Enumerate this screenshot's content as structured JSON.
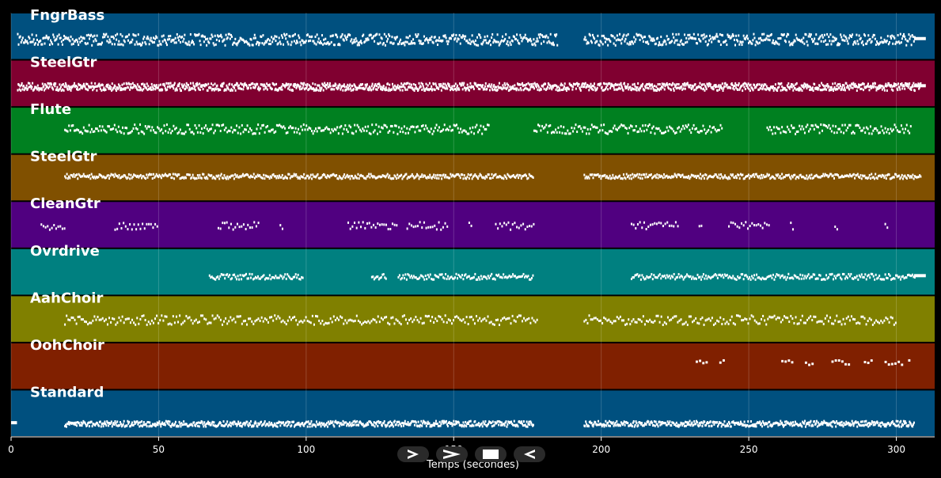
{
  "chart_data": {
    "type": "piano-roll",
    "xlabel": "Temps (secondes)",
    "xlim": [
      0,
      313
    ],
    "xticks": [
      0,
      50,
      100,
      150,
      200,
      250,
      300
    ],
    "grid": true,
    "tracks": [
      {
        "name": "FngrBass",
        "color": "#00507f",
        "density": 3.5,
        "row": 0.55,
        "spread": 0.12,
        "segments": [
          [
            2,
            185
          ],
          [
            194,
            306
          ]
        ],
        "tail": [
          306,
          310
        ]
      },
      {
        "name": "SteelGtr",
        "color": "#800030",
        "density": 5,
        "row": 0.55,
        "spread": 0.08,
        "segments": [
          [
            2,
            308
          ]
        ],
        "tail": [
          306,
          310
        ]
      },
      {
        "name": "Flute",
        "color": "#008020",
        "density": 2.2,
        "row": 0.45,
        "spread": 0.1,
        "segments": [
          [
            18,
            162
          ],
          [
            177,
            241
          ],
          [
            256,
            305
          ]
        ]
      },
      {
        "name": "SteelGtr",
        "color": "#805000",
        "density": 3,
        "row": 0.45,
        "spread": 0.05,
        "segments": [
          [
            18,
            177
          ],
          [
            194,
            308
          ]
        ]
      },
      {
        "name": "CleanGtr",
        "color": "#500080",
        "density": 1.4,
        "row": 0.5,
        "spread": 0.08,
        "segments": [
          [
            10,
            18
          ],
          [
            35,
            50
          ],
          [
            70,
            84
          ],
          [
            91,
            92
          ],
          [
            114,
            131
          ],
          [
            134,
            148
          ],
          [
            155,
            156
          ],
          [
            164,
            177
          ],
          [
            210,
            226
          ],
          [
            233,
            234
          ],
          [
            243,
            257
          ],
          [
            264,
            265
          ],
          [
            279,
            280
          ],
          [
            296,
            297
          ]
        ]
      },
      {
        "name": "Ovrdrive",
        "color": "#008080",
        "density": 2.5,
        "row": 0.58,
        "spread": 0.06,
        "segments": [
          [
            67,
            99
          ],
          [
            122,
            127
          ],
          [
            131,
            177
          ],
          [
            210,
            306
          ]
        ],
        "tail": [
          306,
          310
        ]
      },
      {
        "name": "AahChoir",
        "color": "#808000",
        "density": 1.8,
        "row": 0.5,
        "spread": 0.1,
        "segments": [
          [
            18,
            178
          ],
          [
            194,
            300
          ]
        ]
      },
      {
        "name": "OohChoir",
        "color": "#802000",
        "density": 0.9,
        "row": 0.4,
        "spread": 0.05,
        "segments": [
          [
            232,
            236
          ],
          [
            240,
            242
          ],
          [
            261,
            265
          ],
          [
            269,
            272
          ],
          [
            278,
            284
          ],
          [
            289,
            292
          ],
          [
            296,
            302
          ],
          [
            304,
            305
          ]
        ]
      },
      {
        "name": "Standard",
        "color": "#00507f",
        "density": 4,
        "row": 0.7,
        "spread": 0.06,
        "segments": [
          [
            18,
            177
          ],
          [
            194,
            306
          ]
        ],
        "tail": [
          0,
          2
        ]
      }
    ]
  },
  "controls": {
    "play_icon": "play-outline-icon",
    "fast_forward_icon": "fast-forward-icon",
    "stop_icon": "stop-icon",
    "rewind_icon": "rewind-icon"
  }
}
